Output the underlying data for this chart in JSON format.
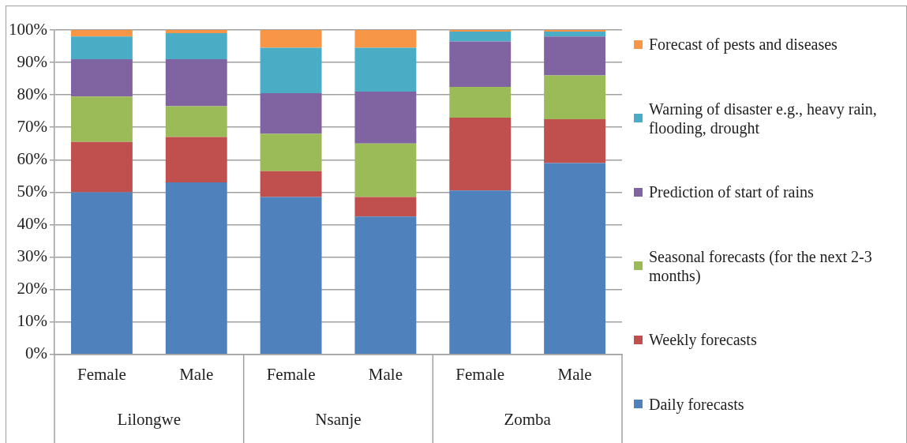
{
  "chart_data": {
    "type": "bar",
    "stacked": true,
    "categories": [
      "Female",
      "Male",
      "Female",
      "Male",
      "Female",
      "Male"
    ],
    "annotations": [
      "Lilongwe",
      "Nsanje",
      "Zomba"
    ],
    "series": [
      {
        "name": "Daily forecasts",
        "color": "#4f81bd",
        "values": [
          50,
          53,
          48.5,
          42.5,
          50.5,
          59
        ]
      },
      {
        "name": "Weekly forecasts",
        "color": "#c0504d",
        "values": [
          15.5,
          14,
          8,
          6,
          22.5,
          13.5
        ]
      },
      {
        "name": "Seasonal forecasts (for the next 2-3 months)",
        "color": "#9bbb59",
        "values": [
          14,
          9.5,
          11.5,
          16.5,
          9.5,
          13.5
        ]
      },
      {
        "name": "Prediction of start of rains",
        "color": "#8064a2",
        "values": [
          11.5,
          14.5,
          12.5,
          16,
          14,
          12
        ]
      },
      {
        "name": "Warning of disaster e.g., heavy rain, flooding, drought",
        "color": "#4bacc6",
        "values": [
          7,
          8,
          14,
          13.5,
          3,
          1.5
        ]
      },
      {
        "name": "Forecast of pests and diseases",
        "color": "#f79646",
        "values": [
          2,
          1,
          5.5,
          5.5,
          0.5,
          0.5
        ]
      }
    ],
    "ylim": [
      0,
      100
    ],
    "yticks": [
      {
        "value": 0,
        "label": "0%"
      },
      {
        "value": 10,
        "label": "10%"
      },
      {
        "value": 20,
        "label": "20%"
      },
      {
        "value": 30,
        "label": "30%"
      },
      {
        "value": 40,
        "label": "40%"
      },
      {
        "value": 50,
        "label": "50%"
      },
      {
        "value": 60,
        "label": "60%"
      },
      {
        "value": 70,
        "label": "70%"
      },
      {
        "value": 80,
        "label": "80%"
      },
      {
        "value": 90,
        "label": "90%"
      },
      {
        "value": 100,
        "label": "100%"
      }
    ],
    "grid": "y",
    "legend": "right"
  }
}
